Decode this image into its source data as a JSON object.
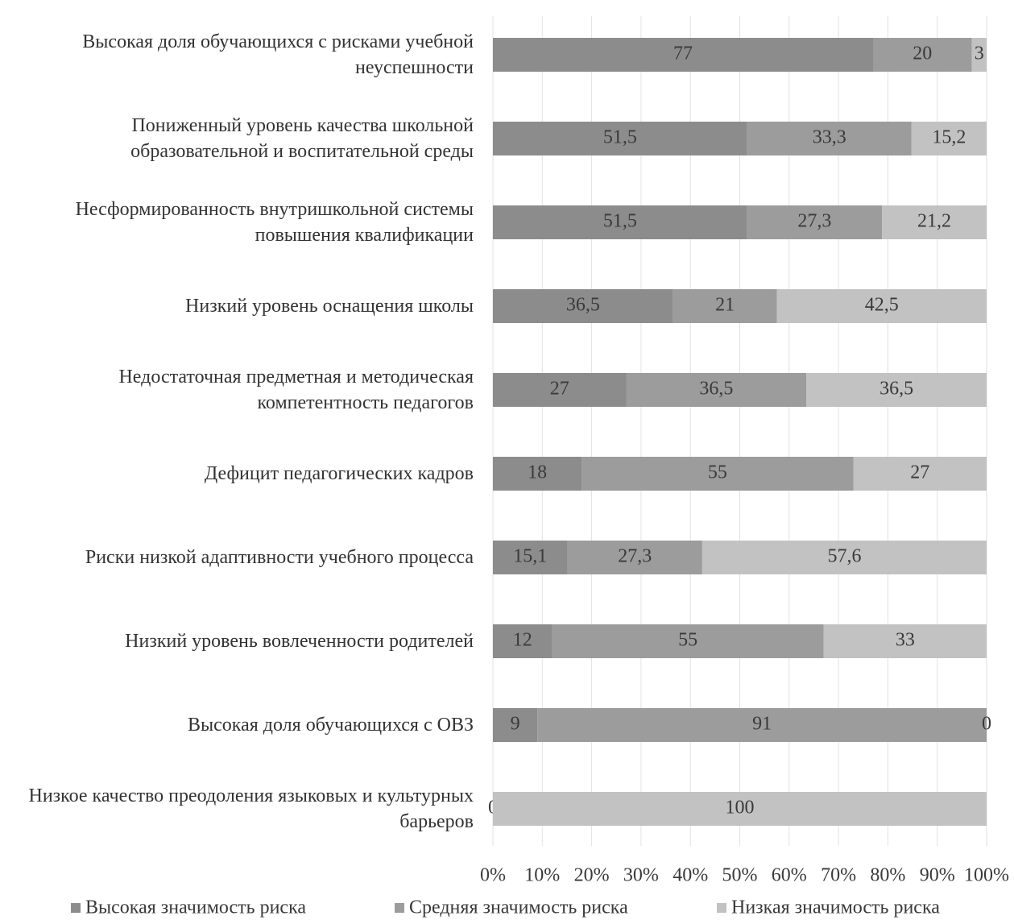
{
  "chart_data": {
    "type": "stacked_barh",
    "categories": [
      "Высокая доля обучающихся с рисками учебной неуспешности",
      "Пониженный уровень качества школьной образовательной и воспитательной среды",
      "Несформированность внутришкольной системы повышения квалификации",
      "Низкий уровень оснащения школы",
      "Недостаточная предметная и методическая компетентность педагогов",
      "Дефицит педагогических кадров",
      "Риски низкой адаптивности учебного процесса",
      "Низкий уровень вовлеченности родителей",
      "Высокая доля обучающихся с ОВЗ",
      "Низкое качество преодоления языковых и культурных барьеров"
    ],
    "series": [
      {
        "name": "Высокая значимость риска",
        "color": "#8c8c8c",
        "values": [
          77,
          51.5,
          51.5,
          36.5,
          27,
          18,
          15.1,
          12,
          9,
          0
        ],
        "value_labels": [
          "77",
          "51,5",
          "51,5",
          "36,5",
          "27",
          "18",
          "15,1",
          "12",
          "9",
          "0"
        ]
      },
      {
        "name": "Средняя значимость риска",
        "color": "#9c9c9c",
        "values": [
          20,
          33.3,
          27.3,
          21,
          36.5,
          55,
          27.3,
          55,
          91,
          null
        ],
        "value_labels": [
          "20",
          "33,3",
          "27,3",
          "21",
          "36,5",
          "55",
          "27,3",
          "55",
          "91",
          null
        ]
      },
      {
        "name": "Низкая значимость риска",
        "color": "#c2c2c2",
        "values": [
          3,
          15.2,
          21.2,
          42.5,
          36.5,
          27,
          57.6,
          33,
          0,
          100
        ],
        "value_labels": [
          "3",
          "15,2",
          "21,2",
          "42,5",
          "36,5",
          "27",
          "57,6",
          "33",
          "0",
          "100"
        ]
      }
    ],
    "xlim": [
      0,
      100
    ],
    "xticks": [
      {
        "value": 0,
        "label": "0%"
      },
      {
        "value": 10,
        "label": "10%"
      },
      {
        "value": 20,
        "label": "20%"
      },
      {
        "value": 30,
        "label": "30%"
      },
      {
        "value": 40,
        "label": "40%"
      },
      {
        "value": 50,
        "label": "50%"
      },
      {
        "value": 60,
        "label": "60%"
      },
      {
        "value": 70,
        "label": "70%"
      },
      {
        "value": 80,
        "label": "80%"
      },
      {
        "value": 90,
        "label": "90%"
      },
      {
        "value": 100,
        "label": "100%"
      }
    ],
    "grid": true,
    "legend": "bottom"
  }
}
